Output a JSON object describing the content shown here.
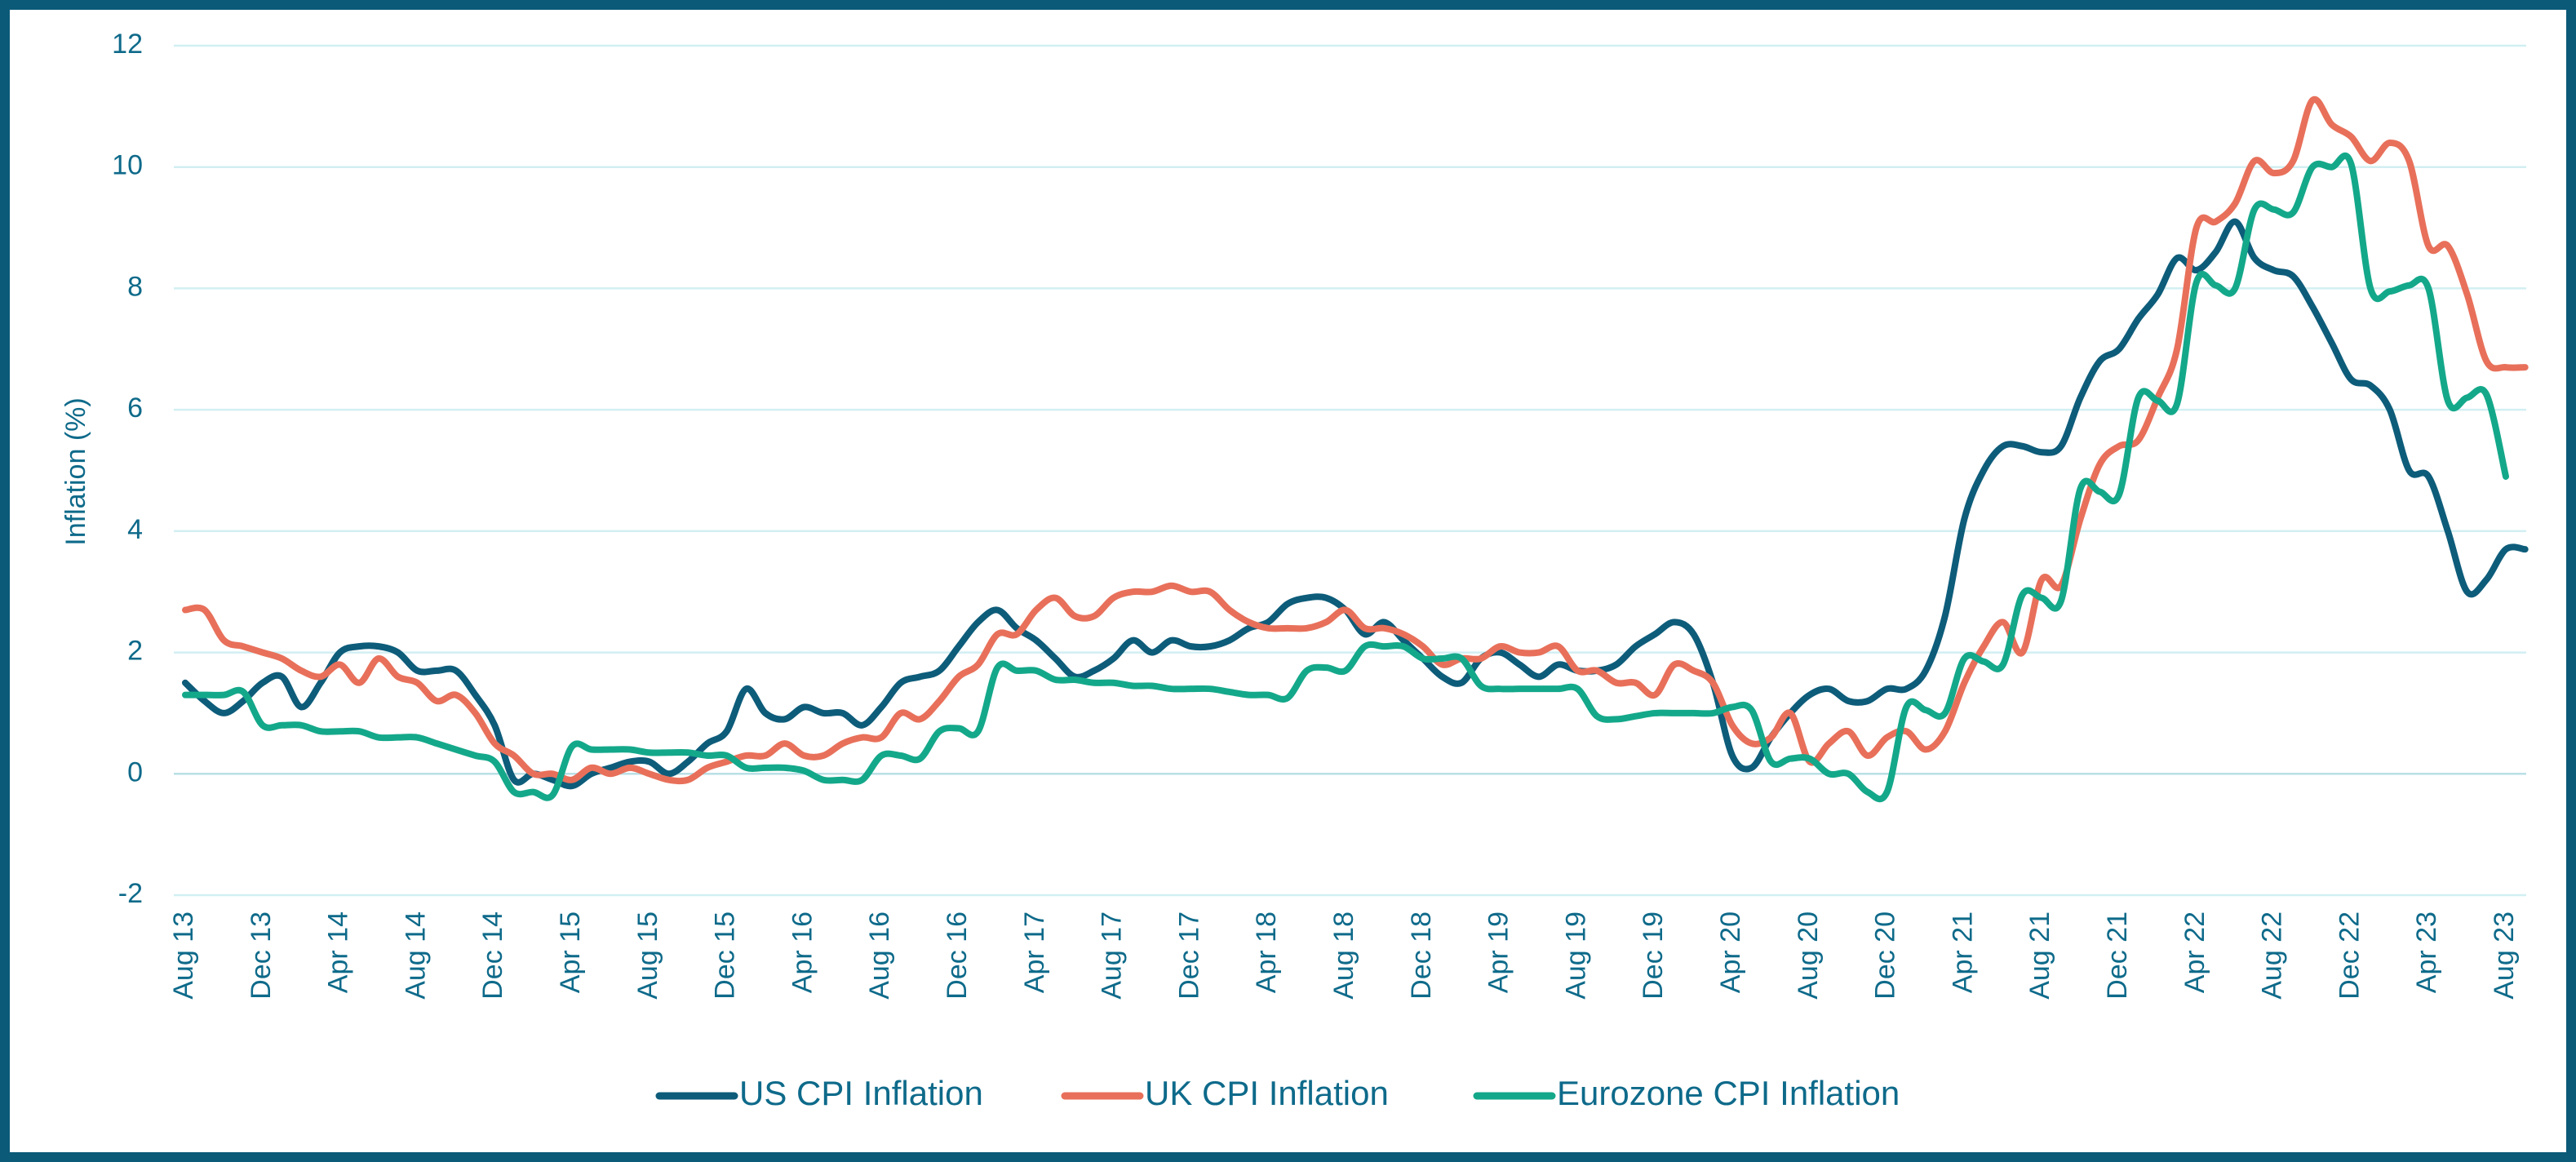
{
  "chart_data": {
    "type": "line",
    "ylabel": "Inflation (%)",
    "categories": [
      "Aug 13",
      null,
      null,
      null,
      "Dec 13",
      null,
      null,
      null,
      "Apr 14",
      null,
      null,
      null,
      "Aug 14",
      null,
      null,
      null,
      "Dec 14",
      null,
      null,
      null,
      "Apr 15",
      null,
      null,
      null,
      "Aug 15",
      null,
      null,
      null,
      "Dec 15",
      null,
      null,
      null,
      "Apr 16",
      null,
      null,
      null,
      "Aug 16",
      null,
      null,
      null,
      "Dec 16",
      null,
      null,
      null,
      "Apr 17",
      null,
      null,
      null,
      "Aug 17",
      null,
      null,
      null,
      "Dec 17",
      null,
      null,
      null,
      "Apr 18",
      null,
      null,
      null,
      "Aug 18",
      null,
      null,
      null,
      "Dec 18",
      null,
      null,
      null,
      "Apr 19",
      null,
      null,
      null,
      "Aug 19",
      null,
      null,
      null,
      "Dec 19",
      null,
      null,
      null,
      "Apr 20",
      null,
      null,
      null,
      "Aug 20",
      null,
      null,
      null,
      "Dec 20",
      null,
      null,
      null,
      "Apr 21",
      null,
      null,
      null,
      "Aug 21",
      null,
      null,
      null,
      "Dec 21",
      null,
      null,
      null,
      "Apr 22",
      null,
      null,
      null,
      "Aug 22",
      null,
      null,
      null,
      "Dec 22",
      null,
      null,
      null,
      "Apr 23",
      null,
      null,
      null,
      "Aug 23",
      null
    ],
    "series": [
      {
        "name": "US CPI Inflation",
        "color": "#0d5c7a",
        "values": [
          1.5,
          1.2,
          1.0,
          1.2,
          1.5,
          1.6,
          1.1,
          1.5,
          2.0,
          2.1,
          2.1,
          2.0,
          1.7,
          1.7,
          1.7,
          1.3,
          0.8,
          -0.1,
          0.0,
          -0.1,
          -0.2,
          0.0,
          0.1,
          0.2,
          0.2,
          0.0,
          0.2,
          0.5,
          0.7,
          1.4,
          1.0,
          0.9,
          1.1,
          1.0,
          1.0,
          0.8,
          1.1,
          1.5,
          1.6,
          1.7,
          2.1,
          2.5,
          2.7,
          2.4,
          2.2,
          1.9,
          1.6,
          1.7,
          1.9,
          2.2,
          2.0,
          2.2,
          2.1,
          2.1,
          2.2,
          2.4,
          2.5,
          2.8,
          2.9,
          2.9,
          2.7,
          2.3,
          2.5,
          2.2,
          1.9,
          1.6,
          1.5,
          1.9,
          2.0,
          1.8,
          1.6,
          1.8,
          1.7,
          1.7,
          1.8,
          2.1,
          2.3,
          2.5,
          2.3,
          1.5,
          0.3,
          0.1,
          0.6,
          1.0,
          1.3,
          1.4,
          1.2,
          1.2,
          1.4,
          1.4,
          1.7,
          2.6,
          4.2,
          5.0,
          5.4,
          5.4,
          5.3,
          5.4,
          6.2,
          6.8,
          7.0,
          7.5,
          7.9,
          8.5,
          8.3,
          8.6,
          9.1,
          8.5,
          8.3,
          8.2,
          7.7,
          7.1,
          6.5,
          6.4,
          6.0,
          5.0,
          4.9,
          4.0,
          3.0,
          3.2,
          3.7,
          3.7
        ]
      },
      {
        "name": "UK CPI Inflation",
        "color": "#e8705a",
        "values": [
          2.7,
          2.7,
          2.2,
          2.1,
          2.0,
          1.9,
          1.7,
          1.6,
          1.8,
          1.5,
          1.9,
          1.6,
          1.5,
          1.2,
          1.3,
          1.0,
          0.5,
          0.3,
          0.0,
          0.0,
          -0.1,
          0.1,
          0.0,
          0.1,
          0.0,
          -0.1,
          -0.1,
          0.1,
          0.2,
          0.3,
          0.3,
          0.5,
          0.3,
          0.3,
          0.5,
          0.6,
          0.6,
          1.0,
          0.9,
          1.2,
          1.6,
          1.8,
          2.3,
          2.3,
          2.7,
          2.9,
          2.6,
          2.6,
          2.9,
          3.0,
          3.0,
          3.1,
          3.0,
          3.0,
          2.7,
          2.5,
          2.4,
          2.4,
          2.4,
          2.5,
          2.7,
          2.4,
          2.4,
          2.3,
          2.1,
          1.8,
          1.9,
          1.9,
          2.1,
          2.0,
          2.0,
          2.1,
          1.7,
          1.7,
          1.5,
          1.5,
          1.3,
          1.8,
          1.7,
          1.5,
          0.8,
          0.5,
          0.6,
          1.0,
          0.2,
          0.5,
          0.7,
          0.3,
          0.6,
          0.7,
          0.4,
          0.7,
          1.5,
          2.1,
          2.5,
          2.0,
          3.2,
          3.1,
          4.2,
          5.1,
          5.4,
          5.5,
          6.2,
          7.0,
          9.0,
          9.1,
          9.4,
          10.1,
          9.9,
          10.1,
          11.1,
          10.7,
          10.5,
          10.1,
          10.4,
          10.1,
          8.7,
          8.7,
          7.9,
          6.8,
          6.7,
          6.7
        ]
      },
      {
        "name": "Eurozone CPI Inflation",
        "color": "#14a88a",
        "values": [
          1.3,
          1.3,
          1.3,
          1.35,
          0.8,
          0.8,
          0.8,
          0.7,
          0.7,
          0.7,
          0.6,
          0.6,
          0.6,
          0.5,
          0.4,
          0.3,
          0.2,
          -0.3,
          -0.3,
          -0.35,
          0.45,
          0.4,
          0.4,
          0.4,
          0.35,
          0.35,
          0.35,
          0.3,
          0.3,
          0.1,
          0.1,
          0.1,
          0.05,
          -0.1,
          -0.1,
          -0.1,
          0.3,
          0.3,
          0.25,
          0.7,
          0.75,
          0.7,
          1.75,
          1.7,
          1.7,
          1.55,
          1.55,
          1.5,
          1.5,
          1.45,
          1.45,
          1.4,
          1.4,
          1.4,
          1.35,
          1.3,
          1.3,
          1.25,
          1.7,
          1.75,
          1.7,
          2.1,
          2.1,
          2.1,
          1.9,
          1.9,
          1.9,
          1.45,
          1.4,
          1.4,
          1.4,
          1.4,
          1.4,
          0.95,
          0.9,
          0.95,
          1.0,
          1.0,
          1.0,
          1.0,
          1.1,
          1.05,
          0.2,
          0.25,
          0.25,
          0.0,
          0.0,
          -0.3,
          -0.3,
          1.1,
          1.05,
          1.0,
          1.9,
          1.85,
          1.8,
          2.95,
          2.9,
          2.85,
          4.7,
          4.65,
          4.6,
          6.2,
          6.15,
          6.1,
          8.1,
          8.05,
          8.0,
          9.3,
          9.3,
          9.25,
          10.0,
          10.0,
          10.05,
          8.0,
          7.95,
          8.05,
          8.0,
          6.15,
          6.2,
          6.25,
          4.9,
          null
        ]
      }
    ],
    "ylim": [
      -2,
      12
    ],
    "yticks": [
      -2,
      0,
      2,
      4,
      6,
      8,
      10,
      12
    ],
    "grid": true,
    "legend": "bottom"
  }
}
